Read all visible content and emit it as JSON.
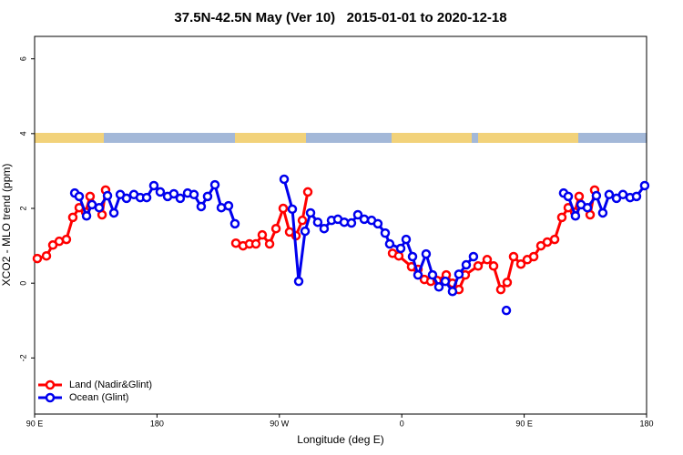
{
  "chart_data": {
    "type": "line",
    "title": "37.5N-42.5N May (Ver 10)   2015-01-01 to 2020-12-18",
    "xlabel": "Longitude (deg E)",
    "ylabel": "XCO2 - MLO trend (ppm)",
    "xlim": [
      90,
      540
    ],
    "ylim": [
      -3.5,
      6.6
    ],
    "xticks": [
      {
        "value": 90,
        "label": "90 E"
      },
      180,
      {
        "value": 270,
        "label": "90 W"
      },
      {
        "value": 360,
        "label": "0"
      },
      {
        "value": 450,
        "label": "90 E"
      },
      {
        "value": 540,
        "label": "180"
      }
    ],
    "yticks": [
      -2,
      0,
      2,
      4,
      6
    ],
    "legend": "bottom-left",
    "series": [
      {
        "name": "Land (Nadir&Glint)",
        "color": "#ff0000",
        "x": [
          92.0,
          98.7,
          103.4,
          108.1,
          113.4,
          118.1,
          122.8,
          127.5,
          130.8,
          139.6,
          142.2,
          null,
          238.0,
          243.3,
          248.0,
          252.7,
          257.4,
          262.8,
          267.5,
          272.8,
          277.5,
          282.2,
          286.9,
          290.9,
          null,
          353.2,
          357.8,
          367.2,
          371.9,
          376.6,
          381.3,
          386.0,
          392.7,
          397.3,
          402.0,
          406.7,
          416.1,
          422.8,
          427.5,
          432.8,
          437.5,
          442.2,
          447.6,
          452.3,
          457.0,
          462.3,
          467.0,
          472.4,
          477.7,
          482.4,
          487.1,
          490.4,
          498.5,
          501.8
        ],
        "values": [
          0.66,
          0.73,
          1.02,
          1.12,
          1.17,
          1.76,
          2.02,
          1.9,
          2.32,
          1.83,
          2.49,
          null,
          1.07,
          1.0,
          1.05,
          1.05,
          1.29,
          1.05,
          1.46,
          2.0,
          1.37,
          1.27,
          1.68,
          2.44,
          null,
          0.8,
          0.73,
          0.44,
          0.37,
          0.1,
          0.05,
          0.07,
          0.22,
          0.0,
          -0.17,
          0.22,
          0.46,
          0.63,
          0.46,
          -0.17,
          0.02,
          0.71,
          0.51,
          0.63,
          0.71,
          1.0,
          1.1,
          1.17,
          1.76,
          2.02,
          1.9,
          2.32,
          1.83,
          2.49
        ]
      },
      {
        "name": "Ocean (Glint)",
        "color": "#0000ee",
        "x": [
          119.5,
          122.8,
          128.2,
          132.2,
          137.5,
          143.6,
          148.3,
          153.0,
          157.6,
          163.0,
          167.7,
          172.4,
          177.7,
          182.4,
          187.8,
          192.4,
          197.1,
          202.5,
          207.2,
          212.5,
          217.2,
          222.6,
          227.3,
          232.6,
          237.3,
          null,
          273.5,
          279.5,
          284.2,
          288.9,
          292.9,
          298.2,
          302.9,
          308.3,
          313.0,
          317.7,
          323.0,
          327.7,
          332.4,
          337.8,
          342.4,
          347.8,
          351.1,
          359.2,
          363.2,
          367.9,
          371.9,
          377.9,
          382.6,
          387.3,
          392.0,
          397.3,
          402.0,
          407.4,
          412.7,
          null,
          436.9,
          null,
          479.0,
          482.4,
          487.7,
          491.8,
          496.5,
          503.1,
          507.8,
          512.5,
          517.9,
          522.6,
          527.9,
          532.6,
          538.6
        ],
        "values": [
          2.41,
          2.32,
          1.8,
          2.1,
          2.02,
          2.34,
          1.88,
          2.37,
          2.27,
          2.37,
          2.29,
          2.29,
          2.61,
          2.44,
          2.32,
          2.39,
          2.27,
          2.41,
          2.37,
          2.05,
          2.32,
          2.63,
          2.02,
          2.07,
          1.59,
          null,
          2.78,
          1.98,
          0.05,
          1.39,
          1.88,
          1.63,
          1.46,
          1.68,
          1.71,
          1.63,
          1.61,
          1.83,
          1.71,
          1.68,
          1.59,
          1.34,
          1.05,
          0.93,
          1.17,
          0.71,
          0.22,
          0.78,
          0.22,
          -0.1,
          0.05,
          -0.22,
          0.24,
          0.49,
          0.71,
          null,
          -0.73,
          null,
          2.41,
          2.32,
          1.8,
          2.1,
          2.02,
          2.34,
          1.88,
          2.37,
          2.27,
          2.37,
          2.29,
          2.32,
          2.61
        ]
      }
    ]
  }
}
